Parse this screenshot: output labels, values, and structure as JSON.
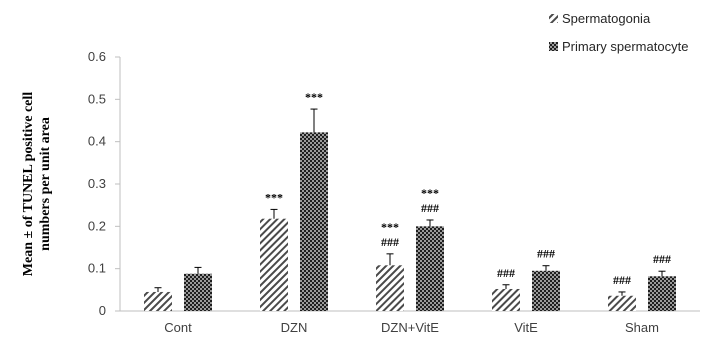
{
  "chart_data": {
    "type": "bar",
    "ylabel": "Mean ± of TUNEL positive cell numbers per unit area",
    "ylabel_lines": [
      "Mean ± of TUNEL  positive cell",
      "numbers per unit area"
    ],
    "categories": [
      "Cont",
      "DZN",
      "DZN+VitE",
      "VitE",
      "Sham"
    ],
    "ylim": [
      0,
      0.6
    ],
    "yticks": [
      "0",
      "0.1",
      "0.2",
      "0.3",
      "0.4",
      "0.5",
      "0.6"
    ],
    "grid": false,
    "legend_position": "top-right",
    "series": [
      {
        "name": "Spermatogonia",
        "pattern": "diagonal-stripes",
        "values": [
          0.045,
          0.218,
          0.108,
          0.052,
          0.036
        ],
        "errors": [
          0.01,
          0.022,
          0.027,
          0.01,
          0.009
        ],
        "annotations": [
          [],
          [
            "***"
          ],
          [
            "***",
            "###"
          ],
          [
            "###"
          ],
          [
            "###"
          ]
        ]
      },
      {
        "name": "Primary spermatocyte",
        "pattern": "checkered",
        "values": [
          0.088,
          0.422,
          0.2,
          0.095,
          0.082
        ],
        "errors": [
          0.015,
          0.055,
          0.015,
          0.012,
          0.012
        ],
        "annotations": [
          [],
          [
            "***"
          ],
          [
            "***",
            "###"
          ],
          [
            "###"
          ],
          [
            "###"
          ]
        ]
      }
    ],
    "colors": {
      "axis": "#bfbfbf",
      "tick_text": "#404040",
      "bar_dark": "#262626"
    }
  }
}
